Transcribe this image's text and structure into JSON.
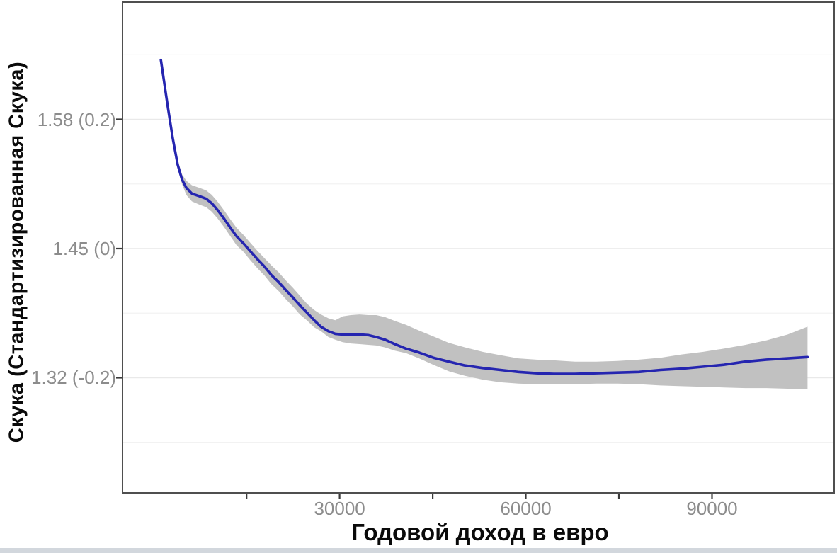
{
  "figure": {
    "xlabel": "Годовой доход в евро",
    "ylabel": "Скука (Стандартизированная Скука)"
  },
  "colors": {
    "line": "#2525b0",
    "band": "#c1c1c1",
    "grid_major": "#e9e9e9",
    "grid_minor": "#f1f1f1",
    "tick_mark": "#3a3a3a",
    "tick_label": "#8c8c8c",
    "panel_border": "#4f4f4f",
    "bottom_strip": "#d2d7dd"
  },
  "chart_data": {
    "type": "line",
    "title": "",
    "xlabel": "Годовой доход в евро",
    "ylabel": "Скука (Стандартизированная Скука)",
    "x_domain": [
      -5100,
      109800
    ],
    "y_domain_std": [
      -0.3792,
      0.3825
    ],
    "x_ticks": [
      {
        "value": 15000,
        "label": ""
      },
      {
        "value": 30000,
        "label": "30000"
      },
      {
        "value": 45000,
        "label": ""
      },
      {
        "value": 60000,
        "label": "60000"
      },
      {
        "value": 75000,
        "label": ""
      },
      {
        "value": 90000,
        "label": "90000"
      }
    ],
    "y_ticks": [
      {
        "value": 0.2,
        "label": "1.58 (0.2)"
      },
      {
        "value": 0.0,
        "label": "1.45 (0)"
      },
      {
        "value": -0.2,
        "label": "1.32 (-0.2)"
      }
    ],
    "y_gridlines": [
      0.3,
      0.2,
      0.1,
      0.0,
      -0.1,
      -0.2,
      -0.3
    ],
    "grid": "horizontal-only",
    "legend": "none",
    "series": [
      {
        "name": "smoothed-boredom-vs-income",
        "point_format": [
          "income_eur",
          "y_std",
          "ci_lower_std",
          "ci_upper_std"
        ],
        "points": [
          [
            1200,
            0.292,
            0.288,
            0.295
          ],
          [
            2300,
            0.22,
            0.217,
            0.224
          ],
          [
            3100,
            0.171,
            0.165,
            0.176
          ],
          [
            3900,
            0.13,
            0.124,
            0.137
          ],
          [
            4600,
            0.107,
            0.1,
            0.115
          ],
          [
            5300,
            0.094,
            0.083,
            0.105
          ],
          [
            6200,
            0.085,
            0.073,
            0.098
          ],
          [
            7400,
            0.081,
            0.068,
            0.094
          ],
          [
            8500,
            0.077,
            0.064,
            0.09
          ],
          [
            9400,
            0.07,
            0.057,
            0.083
          ],
          [
            10300,
            0.06,
            0.047,
            0.073
          ],
          [
            11400,
            0.046,
            0.033,
            0.059
          ],
          [
            12400,
            0.032,
            0.019,
            0.045
          ],
          [
            13400,
            0.019,
            0.005,
            0.032
          ],
          [
            14500,
            0.008,
            -0.005,
            0.021
          ],
          [
            15600,
            -0.004,
            -0.018,
            0.009
          ],
          [
            16700,
            -0.016,
            -0.03,
            -0.003
          ],
          [
            17900,
            -0.028,
            -0.042,
            -0.015
          ],
          [
            19000,
            -0.041,
            -0.055,
            -0.026
          ],
          [
            20200,
            -0.052,
            -0.066,
            -0.037
          ],
          [
            21300,
            -0.064,
            -0.078,
            -0.049
          ],
          [
            22500,
            -0.076,
            -0.09,
            -0.061
          ],
          [
            23600,
            -0.088,
            -0.102,
            -0.073
          ],
          [
            24700,
            -0.099,
            -0.111,
            -0.085
          ],
          [
            25900,
            -0.111,
            -0.122,
            -0.095
          ],
          [
            27000,
            -0.121,
            -0.128,
            -0.102
          ],
          [
            28200,
            -0.128,
            -0.137,
            -0.108
          ],
          [
            29300,
            -0.132,
            -0.141,
            -0.111
          ],
          [
            30500,
            -0.133,
            -0.145,
            -0.105
          ],
          [
            31800,
            -0.133,
            -0.147,
            -0.103
          ],
          [
            33200,
            -0.133,
            -0.148,
            -0.102
          ],
          [
            34600,
            -0.134,
            -0.149,
            -0.103
          ],
          [
            35900,
            -0.137,
            -0.15,
            -0.103
          ],
          [
            37300,
            -0.141,
            -0.153,
            -0.106
          ],
          [
            38900,
            -0.148,
            -0.158,
            -0.112
          ],
          [
            40700,
            -0.155,
            -0.162,
            -0.118
          ],
          [
            42800,
            -0.161,
            -0.17,
            -0.127
          ],
          [
            45100,
            -0.169,
            -0.18,
            -0.136
          ],
          [
            47600,
            -0.175,
            -0.19,
            -0.146
          ],
          [
            50200,
            -0.181,
            -0.197,
            -0.153
          ],
          [
            53100,
            -0.185,
            -0.203,
            -0.16
          ],
          [
            55900,
            -0.188,
            -0.207,
            -0.165
          ],
          [
            58800,
            -0.191,
            -0.209,
            -0.17
          ],
          [
            61700,
            -0.193,
            -0.21,
            -0.172
          ],
          [
            64500,
            -0.194,
            -0.21,
            -0.173
          ],
          [
            67900,
            -0.194,
            -0.21,
            -0.175
          ],
          [
            71400,
            -0.193,
            -0.209,
            -0.175
          ],
          [
            74800,
            -0.192,
            -0.209,
            -0.174
          ],
          [
            78200,
            -0.191,
            -0.21,
            -0.172
          ],
          [
            81700,
            -0.188,
            -0.212,
            -0.169
          ],
          [
            85100,
            -0.186,
            -0.213,
            -0.164
          ],
          [
            88500,
            -0.183,
            -0.214,
            -0.16
          ],
          [
            91900,
            -0.18,
            -0.215,
            -0.155
          ],
          [
            95400,
            -0.175,
            -0.216,
            -0.149
          ],
          [
            98800,
            -0.172,
            -0.216,
            -0.142
          ],
          [
            102200,
            -0.17,
            -0.217,
            -0.133
          ],
          [
            105400,
            -0.168,
            -0.217,
            -0.121
          ]
        ]
      }
    ]
  }
}
